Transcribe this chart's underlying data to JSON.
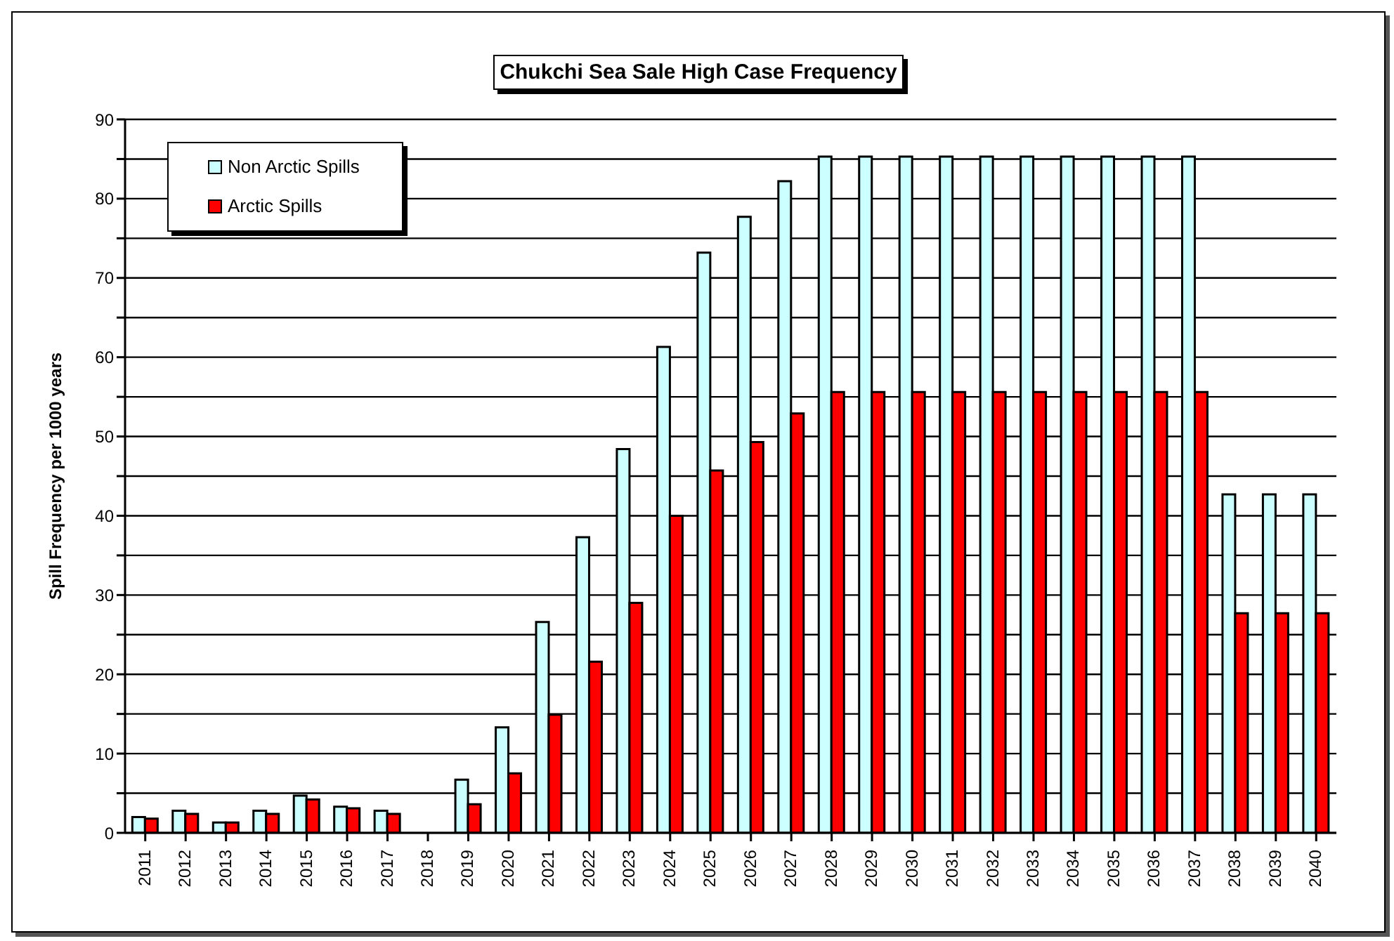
{
  "chart_data": {
    "type": "bar",
    "title": "Chukchi Sea Sale High Case Frequency",
    "ylabel": "Spill Frequency per 1000 years",
    "categories": [
      "2011",
      "2012",
      "2013",
      "2014",
      "2015",
      "2016",
      "2017",
      "2018",
      "2019",
      "2020",
      "2021",
      "2022",
      "2023",
      "2024",
      "2025",
      "2026",
      "2027",
      "2028",
      "2029",
      "2030",
      "2031",
      "2032",
      "2033",
      "2034",
      "2035",
      "2036",
      "2037",
      "2038",
      "2039",
      "2040"
    ],
    "series": [
      {
        "name": "Non Arctic Spills",
        "color": "#ccffff",
        "values": [
          2.0,
          2.8,
          1.3,
          2.8,
          4.7,
          3.3,
          2.8,
          0,
          6.7,
          13.3,
          26.6,
          37.3,
          48.4,
          61.3,
          73.2,
          77.7,
          82.2,
          85.3,
          85.3,
          85.3,
          85.3,
          85.3,
          85.3,
          85.3,
          85.3,
          85.3,
          85.3,
          42.7,
          42.7,
          42.7
        ]
      },
      {
        "name": "Arctic Spills",
        "color": "#ff0000",
        "values": [
          1.8,
          2.4,
          1.3,
          2.4,
          4.2,
          3.1,
          2.4,
          0,
          3.6,
          7.5,
          14.9,
          21.6,
          29.0,
          40.0,
          45.7,
          49.3,
          52.9,
          55.6,
          55.6,
          55.6,
          55.6,
          55.6,
          55.6,
          55.6,
          55.6,
          55.6,
          55.6,
          27.7,
          27.7,
          27.7
        ]
      }
    ],
    "ylim": [
      0,
      90
    ],
    "yticks": [
      0,
      {
        "value": 5,
        "label": null
      },
      10,
      {
        "value": 15,
        "label": null
      },
      20,
      {
        "value": 25,
        "label": null
      },
      30,
      {
        "value": 35,
        "label": null
      },
      40,
      {
        "value": 45,
        "label": null
      },
      50,
      {
        "value": 55,
        "label": null
      },
      60,
      {
        "value": 65,
        "label": null
      },
      70,
      {
        "value": 75,
        "label": null
      },
      80,
      {
        "value": 85,
        "label": null
      },
      90
    ],
    "grid": "y",
    "legend": "top left"
  }
}
